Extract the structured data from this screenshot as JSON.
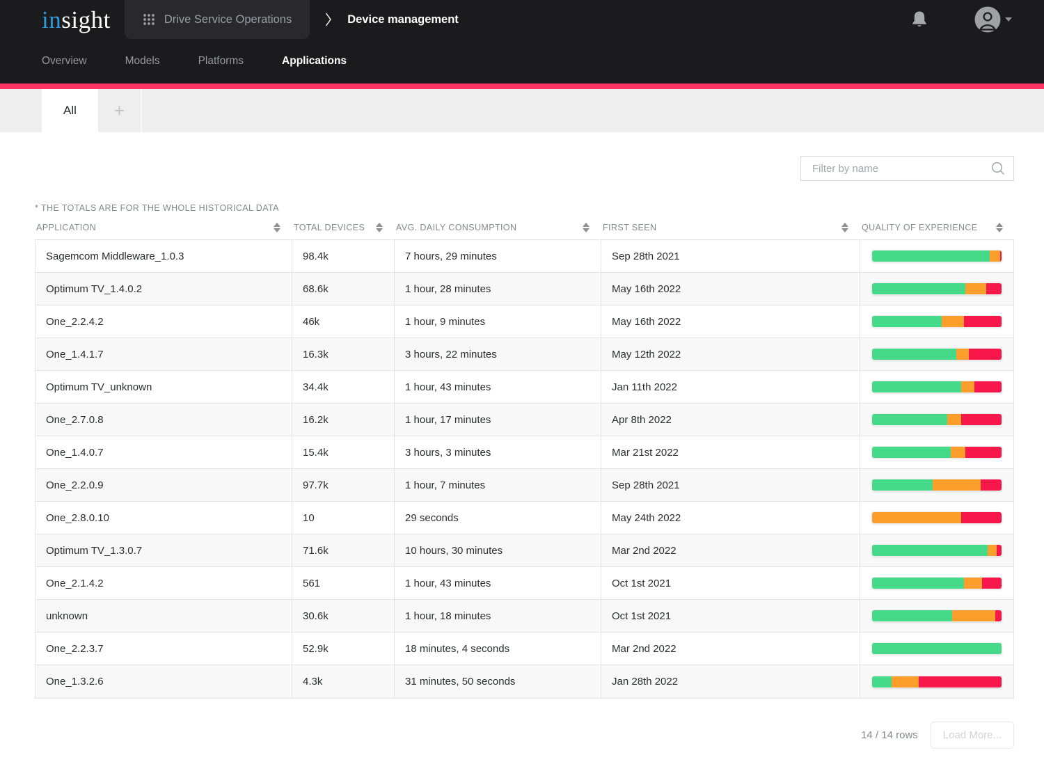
{
  "colors": {
    "accent": "#f93363",
    "qoe_good": "#45d98a",
    "qoe_fair": "#fb9e2c",
    "qoe_poor": "#f8174a",
    "topbar_bg": "#1b1b1d"
  },
  "header": {
    "logo_in": "in",
    "logo_sight": "sight",
    "app_switcher_label": "Drive Service Operations",
    "page_title": "Device management",
    "nav": [
      {
        "label": "Overview",
        "active": false
      },
      {
        "label": "Models",
        "active": false
      },
      {
        "label": "Platforms",
        "active": false
      },
      {
        "label": "Applications",
        "active": true
      }
    ]
  },
  "tabs": {
    "all_label": "All",
    "add_label": "+"
  },
  "filter": {
    "placeholder": "Filter by name"
  },
  "table": {
    "note": "* THE TOTALS ARE FOR THE WHOLE HISTORICAL DATA",
    "columns": [
      "APPLICATION",
      "TOTAL DEVICES",
      "AVG. DAILY CONSUMPTION",
      "FIRST SEEN",
      "QUALITY OF EXPERIENCE"
    ],
    "rows": [
      {
        "application": "Sagemcom Middleware_1.0.3",
        "total_devices": "98.4k",
        "avg_daily_consumption": "7 hours, 29 minutes",
        "first_seen": "Sep 28th 2021",
        "qoe": {
          "good": 91,
          "fair": 8,
          "poor": 1
        }
      },
      {
        "application": "Optimum TV_1.4.0.2",
        "total_devices": "68.6k",
        "avg_daily_consumption": "1 hour, 28 minutes",
        "first_seen": "May 16th 2022",
        "qoe": {
          "good": 72,
          "fair": 16,
          "poor": 12
        }
      },
      {
        "application": "One_2.2.4.2",
        "total_devices": "46k",
        "avg_daily_consumption": "1 hour, 9 minutes",
        "first_seen": "May 16th 2022",
        "qoe": {
          "good": 54,
          "fair": 17,
          "poor": 29
        }
      },
      {
        "application": "One_1.4.1.7",
        "total_devices": "16.3k",
        "avg_daily_consumption": "3 hours, 22 minutes",
        "first_seen": "May 12th 2022",
        "qoe": {
          "good": 65,
          "fair": 10,
          "poor": 25
        }
      },
      {
        "application": "Optimum TV_unknown",
        "total_devices": "34.4k",
        "avg_daily_consumption": "1 hour, 43 minutes",
        "first_seen": "Jan 11th 2022",
        "qoe": {
          "good": 69,
          "fair": 10,
          "poor": 21
        }
      },
      {
        "application": "One_2.7.0.8",
        "total_devices": "16.2k",
        "avg_daily_consumption": "1 hour, 17 minutes",
        "first_seen": "Apr 8th 2022",
        "qoe": {
          "good": 58,
          "fair": 11,
          "poor": 31
        }
      },
      {
        "application": "One_1.4.0.7",
        "total_devices": "15.4k",
        "avg_daily_consumption": "3 hours, 3 minutes",
        "first_seen": "Mar 21st 2022",
        "qoe": {
          "good": 61,
          "fair": 11,
          "poor": 28
        }
      },
      {
        "application": "One_2.2.0.9",
        "total_devices": "97.7k",
        "avg_daily_consumption": "1 hour, 7 minutes",
        "first_seen": "Sep 28th 2021",
        "qoe": {
          "good": 47,
          "fair": 37,
          "poor": 16
        }
      },
      {
        "application": "One_2.8.0.10",
        "total_devices": "10",
        "avg_daily_consumption": "29 seconds",
        "first_seen": "May 24th 2022",
        "qoe": {
          "good": 0,
          "fair": 69,
          "poor": 31
        }
      },
      {
        "application": "Optimum TV_1.3.0.7",
        "total_devices": "71.6k",
        "avg_daily_consumption": "10 hours, 30 minutes",
        "first_seen": "Mar 2nd 2022",
        "qoe": {
          "good": 89,
          "fair": 7,
          "poor": 4
        }
      },
      {
        "application": "One_2.1.4.2",
        "total_devices": "561",
        "avg_daily_consumption": "1 hour, 43 minutes",
        "first_seen": "Oct 1st 2021",
        "qoe": {
          "good": 71,
          "fair": 14,
          "poor": 15
        }
      },
      {
        "application": "unknown",
        "total_devices": "30.6k",
        "avg_daily_consumption": "1 hour, 18 minutes",
        "first_seen": "Oct 1st 2021",
        "qoe": {
          "good": 62,
          "fair": 33,
          "poor": 5
        }
      },
      {
        "application": "One_2.2.3.7",
        "total_devices": "52.9k",
        "avg_daily_consumption": "18 minutes, 4 seconds",
        "first_seen": "Mar 2nd 2022",
        "qoe": {
          "good": 100,
          "fair": 0,
          "poor": 0
        }
      },
      {
        "application": "One_1.3.2.6",
        "total_devices": "4.3k",
        "avg_daily_consumption": "31 minutes, 50 seconds",
        "first_seen": "Jan 28th 2022",
        "qoe": {
          "good": 15,
          "fair": 21,
          "poor": 64
        }
      }
    ]
  },
  "footer": {
    "row_count": "14 / 14 rows",
    "load_more_label": "Load More..."
  }
}
